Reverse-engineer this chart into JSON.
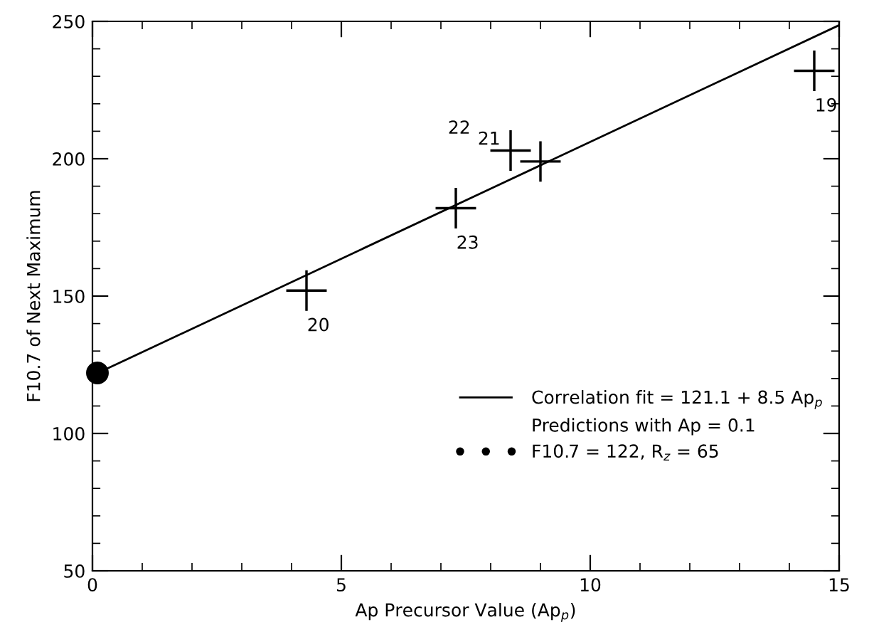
{
  "chart_data": {
    "type": "scatter",
    "xlabel": "Ap Precursor Value (Ap$_{p}$)",
    "ylabel": "F10.7 of Next Maximum",
    "xlim": [
      0,
      15
    ],
    "xticks": [
      0,
      5,
      10,
      15
    ],
    "ylim": [
      50,
      250
    ],
    "yticks": [
      50,
      100,
      150,
      200,
      250
    ],
    "grid": false,
    "legend": "bottom right",
    "legend_title": "Predictions with Ap = 0.1",
    "series": [
      {
        "type": "scatter",
        "marker": "cross",
        "color": "#000000",
        "x": [
          4.3,
          7.3,
          8.4,
          9.0,
          14.5
        ],
        "values": [
          152,
          182,
          203,
          199,
          232
        ]
      },
      {
        "type": "line",
        "name": "Correlation fit = 121.1 + 8.5 Ap$_{p}$",
        "color": "#000000",
        "x": [
          0,
          15
        ],
        "values": [
          121.1,
          248.6
        ]
      },
      {
        "type": "scatter",
        "marker": "circle",
        "name": "F10.7 = 122, R$_{z}$ = 65",
        "color": "#000000",
        "x": [
          0.1
        ],
        "values": [
          122
        ]
      }
    ],
    "annotations": [
      {
        "text": "20",
        "x": 4.3,
        "y": 152
      },
      {
        "text": "23",
        "x": 7.3,
        "y": 182
      },
      {
        "text": "22",
        "x": 8.4,
        "y": 203
      },
      {
        "text": "21",
        "x": 9.0,
        "y": 199
      },
      {
        "text": "19",
        "x": 14.5,
        "y": 232
      }
    ]
  }
}
